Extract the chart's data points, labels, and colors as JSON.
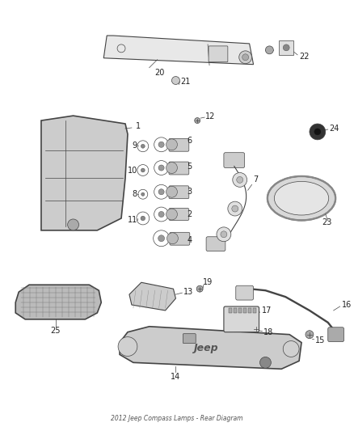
{
  "title": "2012 Jeep Compass Lamps - Rear Diagram",
  "bg_color": "#ffffff",
  "font_size_label": 7,
  "line_color": "#444444",
  "text_color": "#222222"
}
